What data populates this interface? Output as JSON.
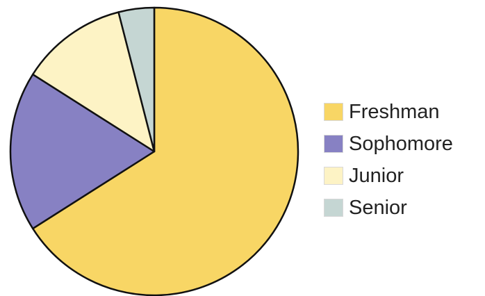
{
  "chart_data": {
    "type": "pie",
    "title": "",
    "categories": [
      "Freshman",
      "Sophomore",
      "Junior",
      "Senior"
    ],
    "values": [
      66,
      18,
      12,
      4
    ],
    "colors": [
      "#f8d665",
      "#8781c3",
      "#fdf3c5",
      "#c5d6d3"
    ],
    "start_angle": "12 o'clock",
    "direction": "clockwise",
    "legend_position": "right"
  }
}
